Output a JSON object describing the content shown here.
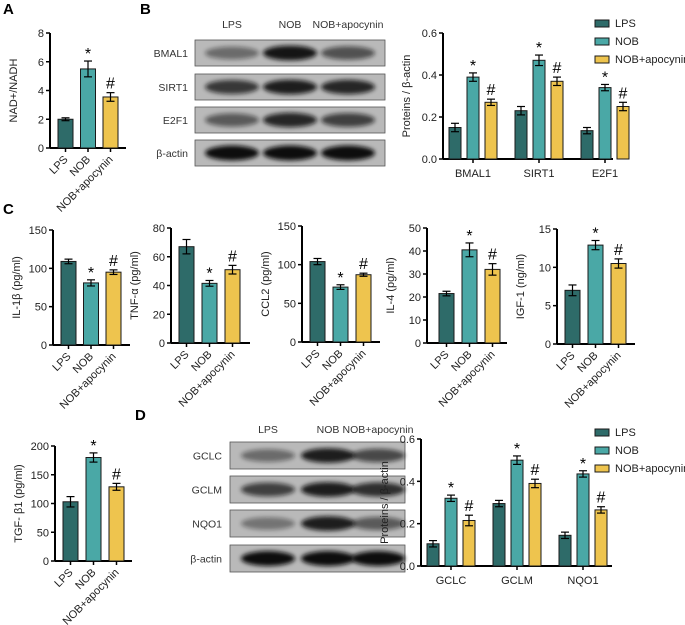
{
  "panels": {
    "a": "A",
    "b": "B",
    "c": "C",
    "d": "D"
  },
  "colors": {
    "LPS": "#2e6b69",
    "NOB": "#4aa8a6",
    "NOB+apocynin": "#eec44e"
  },
  "blots": {
    "b": {
      "lanes": [
        "LPS",
        "NOB",
        "NOB+apocynin"
      ],
      "rows": [
        "BMAL1",
        "SIRT1",
        "E2F1",
        "β-actin"
      ]
    },
    "d": {
      "lanes": [
        "LPS",
        "NOB",
        "NOB+apocynin"
      ],
      "rows": [
        "GCLC",
        "GCLM",
        "NQO1",
        "β-actin"
      ]
    }
  },
  "chart_data": [
    {
      "id": "A",
      "type": "bar",
      "ylabel": "NAD+/NADH",
      "ylim": [
        0,
        8
      ],
      "yticks": [
        0,
        2,
        4,
        6,
        8
      ],
      "categories": [
        "LPS",
        "NOB",
        "NOB+apocynin"
      ],
      "values": [
        2.0,
        5.5,
        3.55
      ],
      "errors": [
        0.1,
        0.55,
        0.3
      ],
      "markers": [
        "",
        "*",
        "#"
      ]
    },
    {
      "id": "B",
      "type": "bar",
      "grouped": true,
      "ylabel": "Proteins / β-actin",
      "ylim": [
        0,
        0.6
      ],
      "yticks": [
        "0.0",
        "0.2",
        "0.4",
        "0.6"
      ],
      "categories": [
        "BMAL1",
        "SIRT1",
        "E2F1"
      ],
      "legend": "top-right",
      "series": [
        {
          "name": "LPS",
          "values": [
            0.15,
            0.23,
            0.135
          ],
          "errors": [
            0.02,
            0.02,
            0.015
          ],
          "markers": [
            "",
            "",
            ""
          ]
        },
        {
          "name": "NOB",
          "values": [
            0.39,
            0.47,
            0.34
          ],
          "errors": [
            0.02,
            0.025,
            0.015
          ],
          "markers": [
            "*",
            "*",
            "*"
          ]
        },
        {
          "name": "NOB+apocynin",
          "values": [
            0.27,
            0.37,
            0.25
          ],
          "errors": [
            0.015,
            0.02,
            0.02
          ],
          "markers": [
            "#",
            "#",
            "#"
          ]
        }
      ]
    },
    {
      "id": "C1",
      "type": "bar",
      "ylabel": "IL-1β (pg/ml)",
      "ylim": [
        0,
        150
      ],
      "yticks": [
        0,
        50,
        100,
        150
      ],
      "categories": [
        "LPS",
        "NOB",
        "NOB+apocynin"
      ],
      "values": [
        109,
        81,
        95
      ],
      "errors": [
        3,
        4,
        3
      ],
      "markers": [
        "",
        "*",
        "#"
      ]
    },
    {
      "id": "C2",
      "type": "bar",
      "ylabel": "TNF-α (pg/ml)",
      "ylim": [
        0,
        80
      ],
      "yticks": [
        0,
        20,
        40,
        60,
        80
      ],
      "categories": [
        "LPS",
        "NOB",
        "NOB+apocynin"
      ],
      "values": [
        67,
        41.5,
        51
      ],
      "errors": [
        5,
        2,
        3
      ],
      "markers": [
        "",
        "*",
        "#"
      ]
    },
    {
      "id": "C3",
      "type": "bar",
      "ylabel": "CCL2 (pg/ml)",
      "ylim": [
        0,
        150
      ],
      "yticks": [
        0,
        50,
        100,
        150
      ],
      "categories": [
        "LPS",
        "NOB",
        "NOB+apocynin"
      ],
      "values": [
        104,
        71,
        87
      ],
      "errors": [
        4,
        3,
        2
      ],
      "markers": [
        "",
        "*",
        "#"
      ]
    },
    {
      "id": "C4",
      "type": "bar",
      "ylabel": "IL-4 (pg/ml)",
      "ylim": [
        0,
        50
      ],
      "yticks": [
        0,
        10,
        20,
        30,
        40,
        50
      ],
      "categories": [
        "LPS",
        "NOB",
        "NOB+apocynin"
      ],
      "values": [
        21.5,
        40.5,
        32
      ],
      "errors": [
        1,
        3,
        2.5
      ],
      "markers": [
        "",
        "*",
        "#"
      ]
    },
    {
      "id": "C5",
      "type": "bar",
      "ylabel": "IGF-1 (ng/ml)",
      "ylim": [
        0,
        15
      ],
      "yticks": [
        0,
        5,
        10,
        15
      ],
      "categories": [
        "LPS",
        "NOB",
        "NOB+apocynin"
      ],
      "values": [
        7,
        12.9,
        10.5
      ],
      "errors": [
        0.7,
        0.6,
        0.6
      ],
      "markers": [
        "",
        "*",
        "#"
      ]
    },
    {
      "id": "C6",
      "type": "bar",
      "ylabel": "TGF- β1 (pg/ml)",
      "ylim": [
        0,
        200
      ],
      "yticks": [
        0,
        50,
        100,
        150,
        200
      ],
      "categories": [
        "LPS",
        "NOB",
        "NOB+apocynin"
      ],
      "values": [
        103,
        180,
        129
      ],
      "errors": [
        9,
        8,
        6
      ],
      "markers": [
        "",
        "*",
        "#"
      ]
    },
    {
      "id": "D",
      "type": "bar",
      "grouped": true,
      "ylabel": "Proteins / β-actin",
      "ylim": [
        0,
        0.6
      ],
      "yticks": [
        "0.0",
        "0.2",
        "0.4",
        "0.6"
      ],
      "categories": [
        "GCLC",
        "GCLM",
        "NQO1"
      ],
      "legend": "top-right",
      "series": [
        {
          "name": "LPS",
          "values": [
            0.105,
            0.295,
            0.145
          ],
          "errors": [
            0.015,
            0.015,
            0.015
          ],
          "markers": [
            "",
            "",
            ""
          ]
        },
        {
          "name": "NOB",
          "values": [
            0.32,
            0.5,
            0.435
          ],
          "errors": [
            0.015,
            0.02,
            0.015
          ],
          "markers": [
            "*",
            "*",
            "*"
          ]
        },
        {
          "name": "NOB+apocynin",
          "values": [
            0.215,
            0.39,
            0.265
          ],
          "errors": [
            0.025,
            0.02,
            0.015
          ],
          "markers": [
            "#",
            "#",
            "#"
          ]
        }
      ]
    }
  ]
}
